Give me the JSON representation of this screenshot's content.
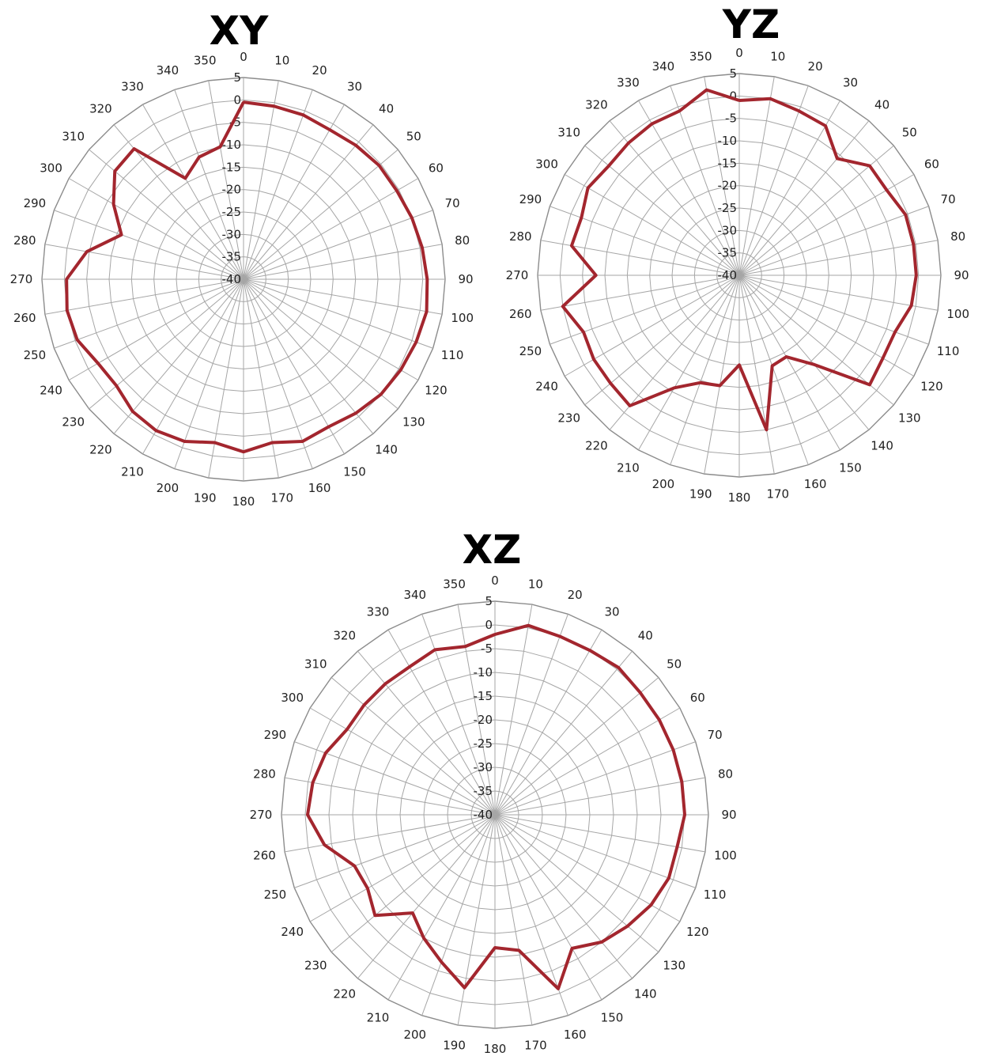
{
  "chart_data": [
    {
      "type": "radar",
      "title": "XY",
      "angle_labels": [
        "0",
        "10",
        "20",
        "30",
        "40",
        "50",
        "60",
        "70",
        "80",
        "90",
        "100",
        "110",
        "120",
        "130",
        "140",
        "150",
        "160",
        "170",
        "180",
        "190",
        "200",
        "210",
        "220",
        "230",
        "240",
        "250",
        "260",
        "270",
        "280",
        "290",
        "300",
        "310",
        "320",
        "330",
        "340",
        "350"
      ],
      "radial_labels": [
        "5",
        "0",
        "-5",
        "-10",
        "-15",
        "-20",
        "-25",
        "-30",
        "-35",
        "-40"
      ],
      "rlim": [
        -40,
        5
      ],
      "series_color": "#A3262E",
      "angles": [
        0,
        10,
        20,
        30,
        40,
        50,
        60,
        70,
        80,
        90,
        100,
        110,
        120,
        130,
        140,
        150,
        160,
        170,
        180,
        190,
        200,
        210,
        220,
        230,
        240,
        250,
        260,
        270,
        280,
        290,
        300,
        310,
        320,
        330,
        340,
        350
      ],
      "values": [
        -0.5,
        -0.8,
        -1.0,
        -1.5,
        -1.0,
        -0.5,
        -0.5,
        0,
        0.5,
        1,
        1.5,
        1,
        0.5,
        0,
        -1,
        -2,
        -1.5,
        -3,
        -1.5,
        -3,
        -1.5,
        -1,
        -1.5,
        -3,
        -2.5,
        -0.5,
        0,
        -0.5,
        -4.5,
        -11,
        -6.5,
        -2.5,
        -2,
        -14,
        -11,
        -10
      ]
    },
    {
      "type": "radar",
      "title": "YZ",
      "angle_labels": [
        "0",
        "10",
        "20",
        "30",
        "40",
        "50",
        "60",
        "70",
        "80",
        "90",
        "100",
        "110",
        "120",
        "130",
        "140",
        "150",
        "160",
        "170",
        "180",
        "190",
        "200",
        "210",
        "220",
        "230",
        "240",
        "250",
        "260",
        "270",
        "280",
        "290",
        "300",
        "310",
        "320",
        "330",
        "340",
        "350"
      ],
      "radial_labels": [
        "5",
        "0",
        "-5",
        "-10",
        "-15",
        "-20",
        "-25",
        "-30",
        "-35",
        "-40"
      ],
      "rlim": [
        -40,
        5
      ],
      "series_color": "#A3262E",
      "angles": [
        0,
        10,
        20,
        30,
        40,
        50,
        60,
        70,
        80,
        90,
        100,
        110,
        120,
        130,
        140,
        150,
        160,
        170,
        180,
        190,
        200,
        210,
        220,
        230,
        240,
        250,
        260,
        270,
        280,
        290,
        300,
        310,
        320,
        330,
        340,
        350
      ],
      "values": [
        -1,
        0,
        -1,
        -1.5,
        -6,
        -2,
        -2,
        -0.5,
        -0.5,
        -0.5,
        -1,
        -3,
        -3,
        -2,
        -14,
        -19,
        -18.5,
        -5,
        -20,
        -15,
        -14.5,
        -11,
        -2,
        -2.5,
        -2.5,
        -3,
        0,
        -8,
        -2,
        -2.5,
        -1,
        -2,
        -1.5,
        -1,
        -1,
        2
      ]
    },
    {
      "type": "radar",
      "title": "XZ",
      "angle_labels": [
        "0",
        "10",
        "20",
        "30",
        "40",
        "50",
        "60",
        "70",
        "80",
        "90",
        "100",
        "110",
        "120",
        "130",
        "140",
        "150",
        "160",
        "170",
        "180",
        "190",
        "200",
        "210",
        "220",
        "230",
        "240",
        "250",
        "260",
        "270",
        "280",
        "290",
        "300",
        "310",
        "320",
        "330",
        "340",
        "350"
      ],
      "radial_labels": [
        "5",
        "0",
        "-5",
        "-10",
        "-15",
        "-20",
        "-25",
        "-30",
        "-35",
        "-40"
      ],
      "rlim": [
        -40,
        5
      ],
      "series_color": "#A3262E",
      "angles": [
        0,
        10,
        20,
        30,
        40,
        50,
        60,
        70,
        80,
        90,
        100,
        110,
        120,
        130,
        140,
        150,
        160,
        170,
        180,
        190,
        200,
        210,
        220,
        230,
        240,
        250,
        260,
        270,
        280,
        290,
        300,
        310,
        320,
        330,
        340,
        350
      ],
      "values": [
        -2,
        0.5,
        0,
        0,
        0.5,
        0,
        0,
        0,
        0,
        0,
        -1,
        -1,
        -2,
        -3.5,
        -5,
        -7.5,
        -1,
        -11,
        -12,
        -3,
        -7,
        -10,
        -13,
        -7,
        -9,
        -8.5,
        -3.5,
        -0.5,
        -1,
        -2,
        -4,
        -4,
        -4,
        -4,
        -3,
        -4
      ]
    }
  ]
}
